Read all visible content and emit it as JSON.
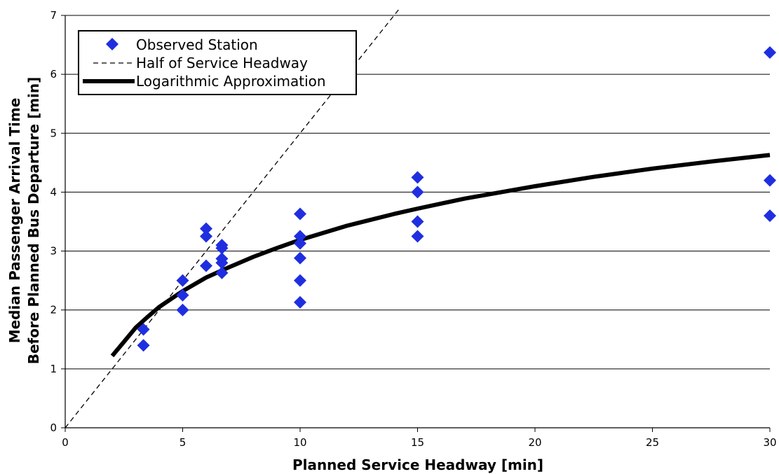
{
  "chart_data": {
    "type": "scatter",
    "xlabel": "Planned Service Headway [min]",
    "ylabel_lines": [
      "Median Passenger Arrival Time",
      "Before Planned Bus Departure [min]"
    ],
    "xlim": [
      0,
      30
    ],
    "ylim": [
      0,
      7
    ],
    "x_ticks": [
      "0",
      "5",
      "10",
      "15",
      "20",
      "25",
      "30"
    ],
    "y_ticks": [
      "0",
      "1",
      "2",
      "3",
      "4",
      "5",
      "6",
      "7"
    ],
    "grid": "horizontal",
    "legend_position": "top-left",
    "series": [
      {
        "name": "Observed Station",
        "kind": "markers",
        "marker": "diamond",
        "color": "#1f2fe0",
        "points": [
          [
            3.33,
            1.67
          ],
          [
            3.33,
            1.4
          ],
          [
            5,
            2.5
          ],
          [
            5,
            2.25
          ],
          [
            5,
            2.0
          ],
          [
            6,
            3.38
          ],
          [
            6,
            3.25
          ],
          [
            6,
            2.75
          ],
          [
            6.67,
            3.1
          ],
          [
            6.67,
            3.05
          ],
          [
            6.67,
            2.87
          ],
          [
            6.67,
            2.8
          ],
          [
            6.67,
            2.63
          ],
          [
            10,
            3.63
          ],
          [
            10,
            3.25
          ],
          [
            10,
            3.13
          ],
          [
            10,
            2.88
          ],
          [
            10,
            2.5
          ],
          [
            10,
            2.13
          ],
          [
            15,
            4.25
          ],
          [
            15,
            4.0
          ],
          [
            15,
            3.5
          ],
          [
            15,
            3.25
          ],
          [
            30,
            6.37
          ],
          [
            30,
            4.2
          ],
          [
            30,
            3.6
          ]
        ]
      },
      {
        "name": "Half of Service Headway",
        "kind": "line",
        "style": "dashed",
        "color": "#000000",
        "points": [
          [
            0,
            0
          ],
          [
            14.2,
            7.1
          ]
        ]
      },
      {
        "name": "Logarithmic Approximation",
        "kind": "line",
        "style": "thick",
        "color": "#000000",
        "points": [
          [
            2,
            1.22
          ],
          [
            2.5,
            1.46
          ],
          [
            3,
            1.7
          ],
          [
            3.5,
            1.88
          ],
          [
            4,
            2.05
          ],
          [
            5,
            2.32
          ],
          [
            6,
            2.55
          ],
          [
            7,
            2.73
          ],
          [
            8,
            2.9
          ],
          [
            9,
            3.05
          ],
          [
            10,
            3.19
          ],
          [
            12,
            3.43
          ],
          [
            14,
            3.63
          ],
          [
            15,
            3.72
          ],
          [
            17,
            3.89
          ],
          [
            20,
            4.1
          ],
          [
            22.5,
            4.26
          ],
          [
            25,
            4.4
          ],
          [
            27.5,
            4.52
          ],
          [
            30,
            4.63
          ]
        ]
      }
    ]
  }
}
